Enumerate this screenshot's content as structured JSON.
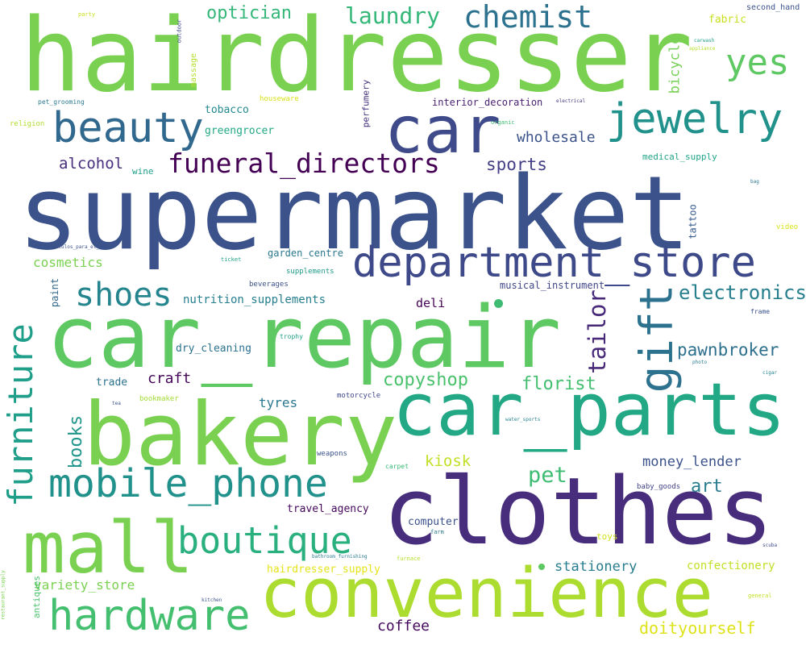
{
  "words": [
    {
      "text": "supermarket",
      "color": "#3b528b"
    },
    {
      "text": "hairdresser",
      "color": "#7ad151"
    },
    {
      "text": "car_repair",
      "color": "#5ec962"
    },
    {
      "text": "clothes",
      "color": "#472d7b"
    },
    {
      "text": "car_parts",
      "color": "#22a884"
    },
    {
      "text": "bakery",
      "color": "#7ad151"
    },
    {
      "text": "convenience",
      "color": "#addc30"
    },
    {
      "text": "department_store",
      "color": "#3e4989"
    },
    {
      "text": "car",
      "color": "#3e4a89"
    },
    {
      "text": "mall",
      "color": "#7ad151"
    },
    {
      "text": "mobile_phone",
      "color": "#21918c"
    },
    {
      "text": "hardware",
      "color": "#44bf70"
    },
    {
      "text": "boutique",
      "color": "#2ab07f"
    },
    {
      "text": "jewelry",
      "color": "#21918c"
    },
    {
      "text": "beauty",
      "color": "#31688e"
    },
    {
      "text": "furniture",
      "color": "#1f9e89"
    },
    {
      "text": "gift",
      "color": "#2c728e"
    },
    {
      "text": "funeral_directors",
      "color": "#440154"
    },
    {
      "text": "chemist",
      "color": "#2c728e"
    },
    {
      "text": "shoes",
      "color": "#25858e"
    },
    {
      "text": "yes",
      "color": "#5ec962"
    },
    {
      "text": "laundry",
      "color": "#35b779"
    },
    {
      "text": "electronics",
      "color": "#277f8e"
    },
    {
      "text": "tailor",
      "color": "#482878"
    },
    {
      "text": "optician",
      "color": "#35b779"
    },
    {
      "text": "pawnbroker",
      "color": "#2d708e"
    },
    {
      "text": "copyshop",
      "color": "#4ac16d"
    },
    {
      "text": "money_lender",
      "color": "#3b528b"
    },
    {
      "text": "doityourself",
      "color": "#dde318"
    },
    {
      "text": "pet",
      "color": "#3fbc73"
    },
    {
      "text": "florist",
      "color": "#44bf70"
    },
    {
      "text": "sports",
      "color": "#433e85"
    },
    {
      "text": "art",
      "color": "#287c8e"
    },
    {
      "text": "books",
      "color": "#1f958b"
    },
    {
      "text": "kiosk",
      "color": "#c0df25"
    },
    {
      "text": "wholesale",
      "color": "#3b528b"
    },
    {
      "text": "alcohol",
      "color": "#472f7d"
    },
    {
      "text": "craft",
      "color": "#46075a"
    },
    {
      "text": "coffee",
      "color": "#460a5d"
    },
    {
      "text": "cosmetics",
      "color": "#7ad151"
    },
    {
      "text": "stationery",
      "color": "#287d8e"
    },
    {
      "text": "bicycle",
      "color": "#75d054"
    },
    {
      "text": "variety_store",
      "color": "#7ad151"
    },
    {
      "text": "confectionery",
      "color": "#c2df23"
    },
    {
      "text": "tyres",
      "color": "#2a788e"
    },
    {
      "text": "nutrition_supplements",
      "color": "#277f8e"
    },
    {
      "text": "dry_cleaning",
      "color": "#2c728e"
    },
    {
      "text": "computer",
      "color": "#3b528b"
    },
    {
      "text": "hairdresser_supply",
      "color": "#e5e419"
    },
    {
      "text": "deli",
      "color": "#440154"
    },
    {
      "text": "musical_instrument",
      "color": "#404688"
    },
    {
      "text": "travel_agency",
      "color": "#46085c"
    },
    {
      "text": "greengrocer",
      "color": "#22a884"
    },
    {
      "text": "tobacco",
      "color": "#23898e"
    },
    {
      "text": "garden_centre",
      "color": "#2a788e"
    },
    {
      "text": "paint",
      "color": "#31688e"
    },
    {
      "text": "interior_decoration",
      "color": "#481f70"
    },
    {
      "text": "tattoo",
      "color": "#375a8c"
    },
    {
      "text": "medical_supply",
      "color": "#20a486"
    },
    {
      "text": "perfumery",
      "color": "#46337e"
    },
    {
      "text": "fabric",
      "color": "#c8e020"
    },
    {
      "text": "trade",
      "color": "#2c728e"
    },
    {
      "text": "antiques",
      "color": "#4ac16d"
    },
    {
      "text": "massage",
      "color": "#b5de2b"
    },
    {
      "text": "wine",
      "color": "#1fa088"
    },
    {
      "text": "toys",
      "color": "#d0e11c"
    },
    {
      "text": "second_hand",
      "color": "#3b528b"
    },
    {
      "text": "houseware",
      "color": "#d8e219"
    },
    {
      "text": "beverages",
      "color": "#3b528b"
    },
    {
      "text": "supplements",
      "color": "#1f9a8a"
    },
    {
      "text": "bookmaker",
      "color": "#a2da37"
    },
    {
      "text": "motorcycle",
      "color": "#3f4889"
    },
    {
      "text": "baby_goods",
      "color": "#414287"
    },
    {
      "text": "weapons",
      "color": "#3b528b"
    },
    {
      "text": "pet_grooming",
      "color": "#2a788e"
    },
    {
      "text": "religion",
      "color": "#b0dd2f"
    },
    {
      "text": "trophy",
      "color": "#1fa187"
    },
    {
      "text": "ticket",
      "color": "#20a386"
    },
    {
      "text": "video",
      "color": "#d8e219"
    },
    {
      "text": "carpet",
      "color": "#38b977"
    },
    {
      "text": "furnace",
      "color": "#b5de2b"
    },
    {
      "text": "outdoor",
      "color": "#3e4989"
    },
    {
      "text": "party",
      "color": "#c8e020"
    },
    {
      "text": "electrical",
      "color": "#453781"
    },
    {
      "text": "organic",
      "color": "#3fbc73"
    },
    {
      "text": "carwash",
      "color": "#1f9e89"
    },
    {
      "text": "appliance",
      "color": "#b5de2b"
    },
    {
      "text": "bag",
      "color": "#2a788e"
    },
    {
      "text": "Articulos_para_el_hogar",
      "color": "#3b528b"
    },
    {
      "text": "frame",
      "color": "#3b528b"
    },
    {
      "text": "photo",
      "color": "#287d8e"
    },
    {
      "text": "cigar",
      "color": "#26828e"
    },
    {
      "text": "water_sports",
      "color": "#25838e"
    },
    {
      "text": "farm",
      "color": "#2a788e"
    },
    {
      "text": "scuba",
      "color": "#3e4989"
    },
    {
      "text": "bathroom_furnishing",
      "color": "#2a788e"
    },
    {
      "text": "general",
      "color": "#c2df23"
    },
    {
      "text": "kitchen",
      "color": "#3b528b"
    },
    {
      "text": "restaurant_supply",
      "color": "#7ad151"
    },
    {
      "text": "tea",
      "color": "#3b528b"
    }
  ]
}
